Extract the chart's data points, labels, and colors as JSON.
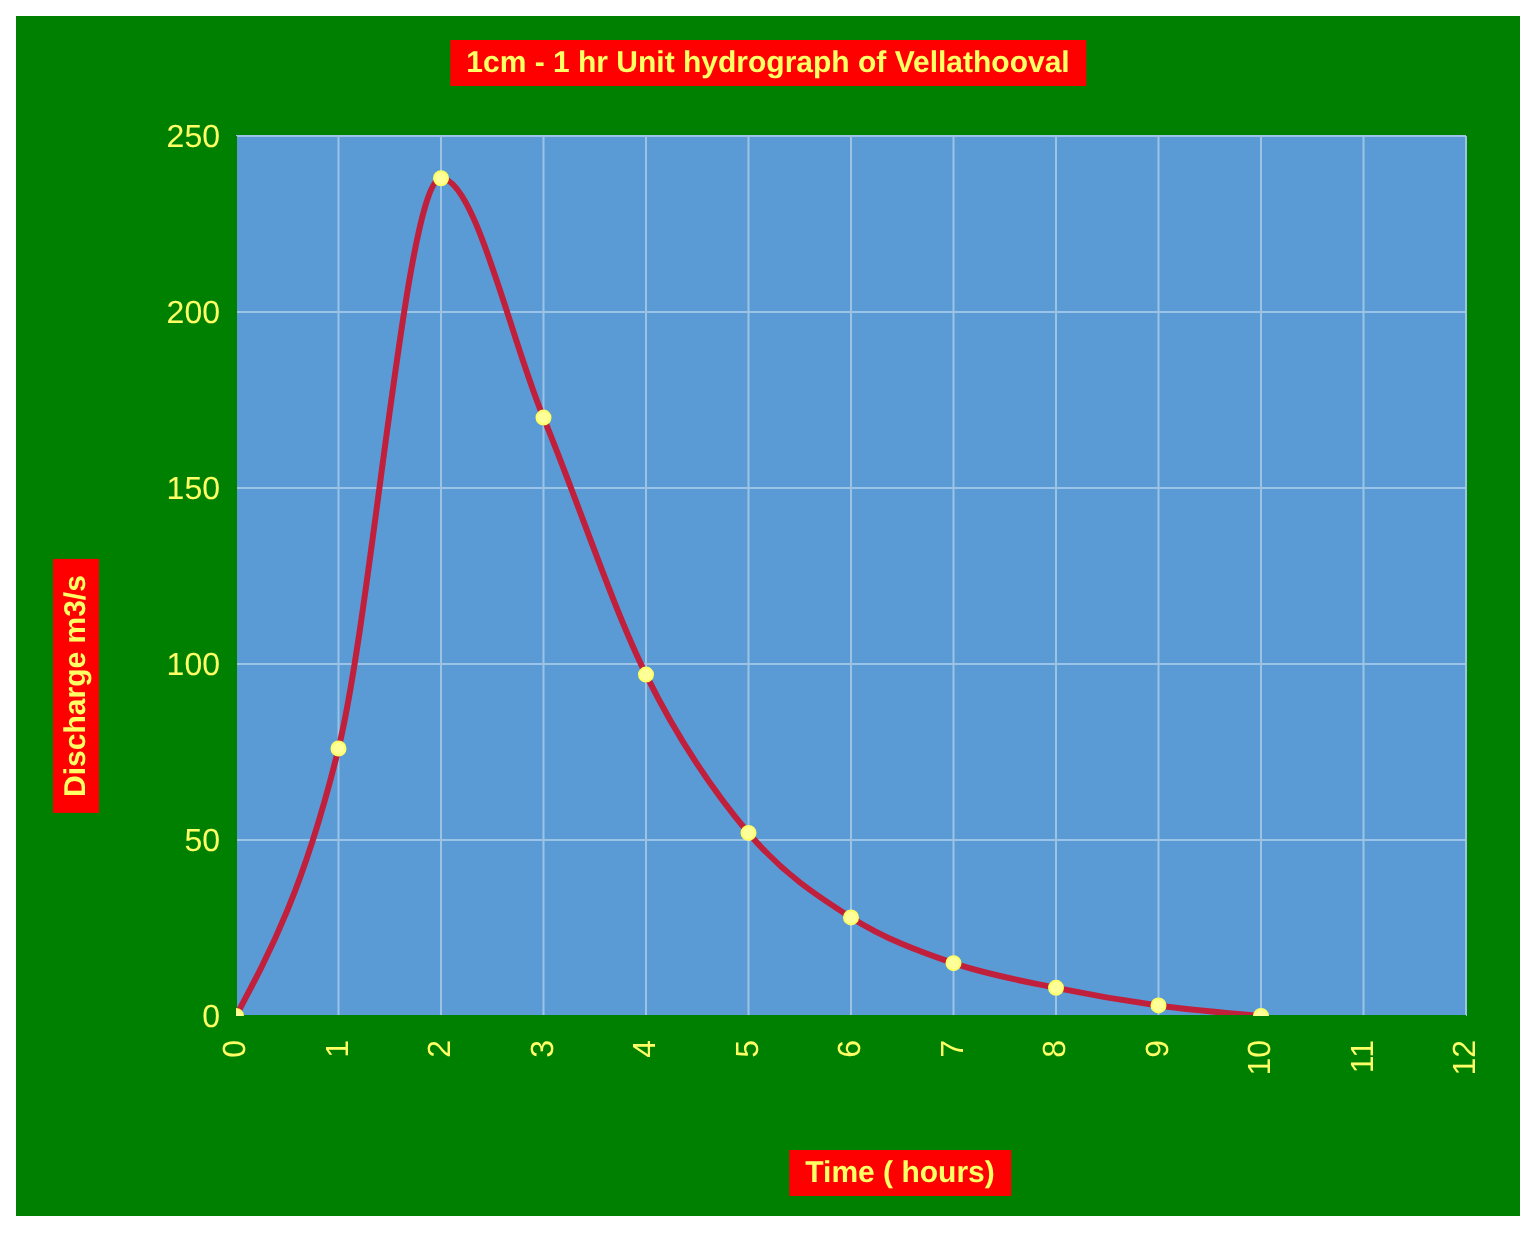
{
  "chart_data": {
    "type": "line",
    "title": "1cm - 1 hr Unit hydrograph of Vellathooval",
    "xlabel": "Time ( hours)",
    "ylabel": "Discharge m3/s",
    "x": [
      0,
      1,
      2,
      3,
      4,
      5,
      6,
      7,
      8,
      9,
      10
    ],
    "series": [
      {
        "color": "#c0203c",
        "values": [
          0,
          76,
          238,
          170,
          97,
          52,
          28,
          15,
          8,
          3,
          0
        ]
      }
    ],
    "xlim": [
      0,
      12
    ],
    "xticks": [
      0,
      1,
      2,
      3,
      4,
      5,
      6,
      7,
      8,
      9,
      10,
      11,
      12
    ],
    "ylim": [
      0,
      250
    ],
    "yticks": [
      0,
      50,
      100,
      150,
      200,
      250
    ],
    "grid": true,
    "marker": "circle",
    "line_style": "solid",
    "legend": false
  }
}
